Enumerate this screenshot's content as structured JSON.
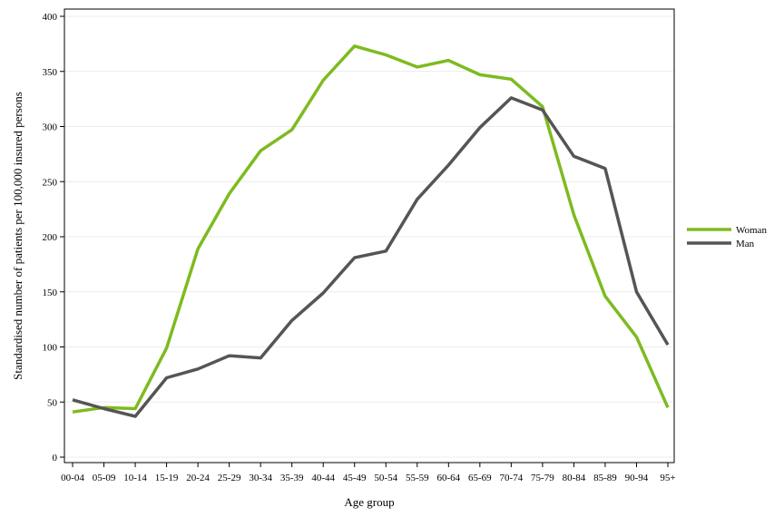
{
  "chart_data": {
    "type": "line",
    "title": "",
    "xlabel": "Age group",
    "ylabel": "Standardised number of patients per 100,000 insured persons",
    "ylim": [
      0,
      400
    ],
    "yticks": [
      0,
      50,
      100,
      150,
      200,
      250,
      300,
      350,
      400
    ],
    "grid": true,
    "legend_position": "right",
    "categories": [
      "00-04",
      "05-09",
      "10-14",
      "15-19",
      "20-24",
      "25-29",
      "30-34",
      "35-39",
      "40-44",
      "45-49",
      "50-54",
      "55-59",
      "60-64",
      "65-69",
      "70-74",
      "75-79",
      "80-84",
      "85-89",
      "90-94",
      "95+"
    ],
    "series": [
      {
        "name": "Woman",
        "color": "#7dbb1f",
        "values": [
          41,
          45,
          44,
          99,
          189,
          239,
          278,
          297,
          342,
          373,
          365,
          354,
          360,
          347,
          343,
          318,
          220,
          146,
          109,
          45
        ]
      },
      {
        "name": "Man",
        "color": "#555555",
        "values": [
          52,
          44,
          37,
          72,
          80,
          92,
          90,
          124,
          149,
          181,
          187,
          234,
          265,
          299,
          326,
          315,
          273,
          262,
          150,
          102
        ]
      }
    ]
  }
}
